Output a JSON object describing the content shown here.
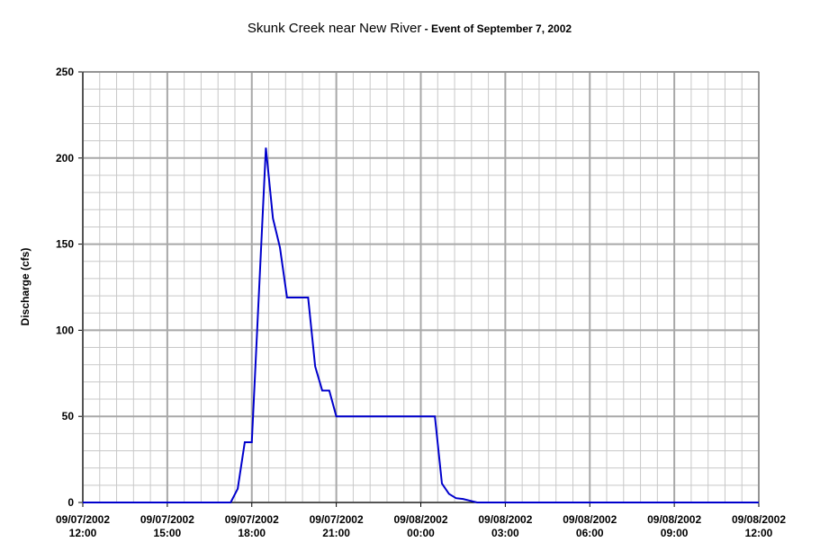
{
  "chart_data": {
    "type": "line",
    "title": "Skunk Creek near New River",
    "subtitle": " - Event of September 7, 2002",
    "y_label": "Discharge (cfs)",
    "x": [
      "09/07/2002 12:00",
      "09/07/2002 17:15",
      "09/07/2002 17:30",
      "09/07/2002 17:45",
      "09/07/2002 18:00",
      "09/07/2002 18:30",
      "09/07/2002 18:45",
      "09/07/2002 19:00",
      "09/07/2002 19:15",
      "09/07/2002 20:00",
      "09/07/2002 20:15",
      "09/07/2002 20:30",
      "09/07/2002 20:45",
      "09/07/2002 21:00",
      "09/08/2002 00:30",
      "09/08/2002 00:45",
      "09/08/2002 01:00",
      "09/08/2002 01:15",
      "09/08/2002 01:30",
      "09/08/2002 01:45",
      "09/08/2002 02:00",
      "09/08/2002 12:00"
    ],
    "series": [
      {
        "name": "Discharge",
        "color": "#0000cc",
        "values": [
          0,
          0,
          8,
          35,
          35,
          206,
          165,
          148,
          119,
          119,
          79,
          65,
          65,
          50,
          50,
          11,
          5,
          2.5,
          2,
          1,
          0,
          0
        ]
      }
    ],
    "xlim": [
      "09/07/2002 12:00",
      "09/08/2002 12:00"
    ],
    "xticks": [
      "09/07/2002 12:00",
      "09/07/2002 15:00",
      "09/07/2002 18:00",
      "09/07/2002 21:00",
      "09/08/2002 00:00",
      "09/08/2002 03:00",
      "09/08/2002 06:00",
      "09/08/2002 09:00",
      "09/08/2002 12:00"
    ],
    "ylim": [
      0,
      250
    ],
    "yticks": [
      0,
      50,
      100,
      150,
      200,
      250
    ],
    "grid": true
  }
}
